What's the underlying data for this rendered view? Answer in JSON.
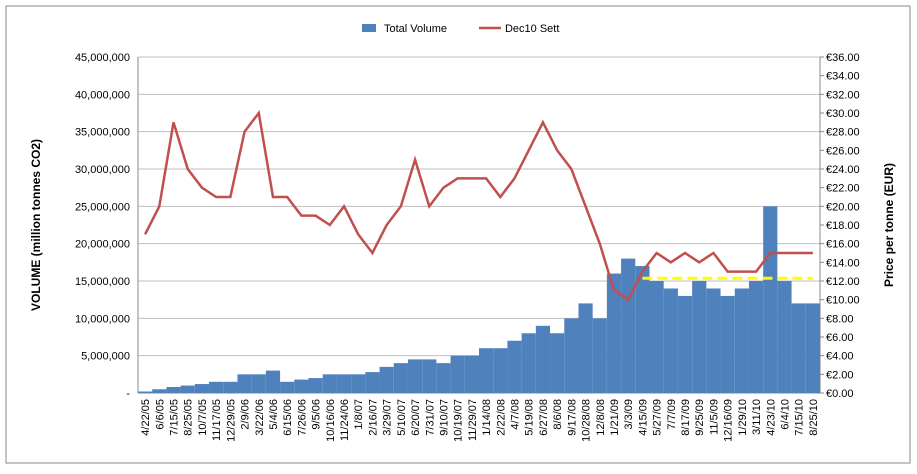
{
  "chart_data": {
    "type": "bar_line",
    "ylabel": "VOLUME (million tonnes CO2)",
    "y2label": "Price per tonne (EUR)",
    "categories": [
      "4/22/05",
      "6/6/05",
      "7/15/05",
      "8/25/05",
      "10/7/05",
      "11/17/05",
      "12/29/05",
      "2/9/06",
      "3/22/06",
      "5/4/06",
      "6/15/06",
      "7/26/06",
      "9/5/06",
      "10/16/06",
      "11/24/06",
      "1/8/07",
      "2/16/07",
      "3/29/07",
      "5/10/07",
      "6/20/07",
      "7/31/07",
      "9/10/07",
      "10/19/07",
      "11/29/07",
      "1/14/08",
      "2/22/08",
      "4/7/08",
      "5/19/08",
      "6/27/08",
      "8/6/08",
      "9/17/08",
      "10/28/08",
      "12/8/08",
      "1/21/09",
      "3/3/09",
      "4/15/09",
      "5/27/09",
      "7/7/09",
      "8/17/09",
      "9/25/09",
      "11/5/09",
      "12/16/09",
      "1/29/10",
      "3/11/10",
      "4/23/10",
      "6/4/10",
      "7/15/10",
      "8/25/10"
    ],
    "series": [
      {
        "name": "Total Volume",
        "type": "bar",
        "color": "#4f81bd",
        "values": [
          200000,
          500000,
          800000,
          1000000,
          1200000,
          1500000,
          1500000,
          2500000,
          2500000,
          3000000,
          1500000,
          1800000,
          2000000,
          2500000,
          2500000,
          2500000,
          2800000,
          3500000,
          4000000,
          4500000,
          4500000,
          4000000,
          5000000,
          5000000,
          6000000,
          6000000,
          7000000,
          8000000,
          9000000,
          8000000,
          10000000,
          12000000,
          10000000,
          16000000,
          18000000,
          17000000,
          15000000,
          14000000,
          13000000,
          15000000,
          14000000,
          13000000,
          14000000,
          15000000,
          25000000,
          15000000,
          12000000,
          12000000
        ]
      },
      {
        "name": "Dec10 Sett",
        "type": "line",
        "axis": "y2",
        "color": "#c0504d",
        "values": [
          17,
          20,
          29,
          24,
          22,
          21,
          21,
          28,
          30,
          21,
          21,
          19,
          19,
          18,
          20,
          17,
          15,
          18,
          20,
          25,
          20,
          22,
          23,
          23,
          23,
          21,
          23,
          26,
          29,
          26,
          24,
          20,
          16,
          11,
          10,
          13,
          15,
          14,
          15,
          14,
          15,
          13,
          13,
          13,
          15,
          15,
          15,
          15
        ]
      },
      {
        "type": "dashed_line",
        "axis": "y2",
        "color": "#ffff00",
        "values": [
          null,
          null,
          null,
          null,
          null,
          null,
          null,
          null,
          null,
          null,
          null,
          null,
          null,
          null,
          null,
          null,
          null,
          null,
          null,
          null,
          null,
          null,
          null,
          null,
          null,
          null,
          null,
          null,
          null,
          null,
          null,
          null,
          null,
          null,
          null,
          12.3,
          12.3,
          12.3,
          12.3,
          12.3,
          12.3,
          12.3,
          12.3,
          12.3,
          12.3,
          12.3,
          12.3,
          12.3
        ]
      }
    ],
    "ylim": [
      0,
      45000000
    ],
    "yticks": [
      {
        "value": 0,
        "label": "-"
      },
      {
        "value": 5000000,
        "label": "5,000,000"
      },
      {
        "value": 10000000,
        "label": "10,000,000"
      },
      {
        "value": 15000000,
        "label": "15,000,000"
      },
      {
        "value": 20000000,
        "label": "20,000,000"
      },
      {
        "value": 25000000,
        "label": "25,000,000"
      },
      {
        "value": 30000000,
        "label": "30,000,000"
      },
      {
        "value": 35000000,
        "label": "35,000,000"
      },
      {
        "value": 40000000,
        "label": "40,000,000"
      },
      {
        "value": 45000000,
        "label": "45,000,000"
      }
    ],
    "y2lim": [
      0,
      36
    ],
    "y2ticks": [
      {
        "value": 0,
        "label": "€0.00"
      },
      {
        "value": 2,
        "label": "€2.00"
      },
      {
        "value": 4,
        "label": "€4.00"
      },
      {
        "value": 6,
        "label": "€6.00"
      },
      {
        "value": 8,
        "label": "€8.00"
      },
      {
        "value": 10,
        "label": "€10.00"
      },
      {
        "value": 12,
        "label": "€12.00"
      },
      {
        "value": 14,
        "label": "€14.00"
      },
      {
        "value": 16,
        "label": "€16.00"
      },
      {
        "value": 18,
        "label": "€18.00"
      },
      {
        "value": 20,
        "label": "€20.00"
      },
      {
        "value": 22,
        "label": "€22.00"
      },
      {
        "value": 24,
        "label": "€24.00"
      },
      {
        "value": 26,
        "label": "€26.00"
      },
      {
        "value": 28,
        "label": "€28.00"
      },
      {
        "value": 30,
        "label": "€30.00"
      },
      {
        "value": 32,
        "label": "€32.00"
      },
      {
        "value": 34,
        "label": "€34.00"
      },
      {
        "value": 36,
        "label": "€36.00"
      }
    ],
    "grid": true
  }
}
